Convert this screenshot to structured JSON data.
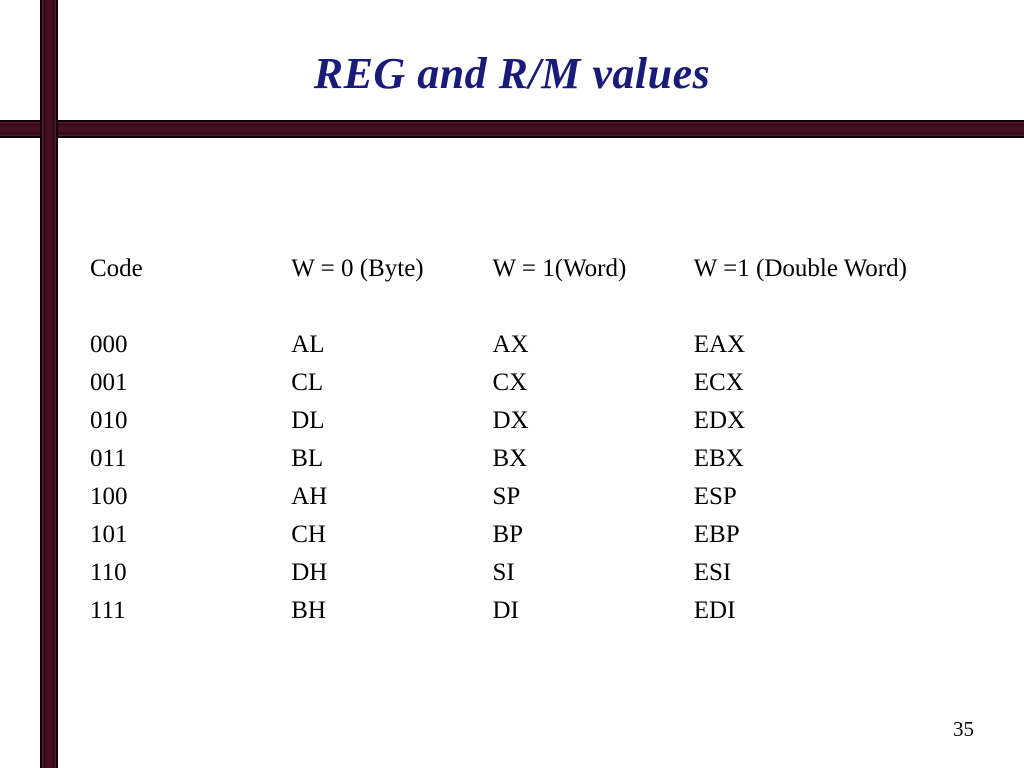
{
  "slide": {
    "title": "REG and R/M values",
    "page_number": "35",
    "accent_color": "#4a1225",
    "title_color": "#1a1a7a",
    "text_color": "#000000",
    "background_color": "#ffffff"
  },
  "table": {
    "type": "table",
    "columns": [
      "Code",
      "W = 0 (Byte)",
      "W = 1(Word)",
      "W =1 (Double Word)"
    ],
    "font_size_pt": 19,
    "rows": [
      [
        "000",
        "AL",
        "AX",
        "EAX"
      ],
      [
        "001",
        "CL",
        "CX",
        "ECX"
      ],
      [
        "010",
        "DL",
        "DX",
        "EDX"
      ],
      [
        "011",
        "BL",
        "BX",
        "EBX"
      ],
      [
        "100",
        "AH",
        "SP",
        "ESP"
      ],
      [
        "101",
        "CH",
        "BP",
        "EBP"
      ],
      [
        "110",
        "DH",
        "SI",
        "ESI"
      ],
      [
        "111",
        "BH",
        "DI",
        "EDI"
      ]
    ]
  }
}
